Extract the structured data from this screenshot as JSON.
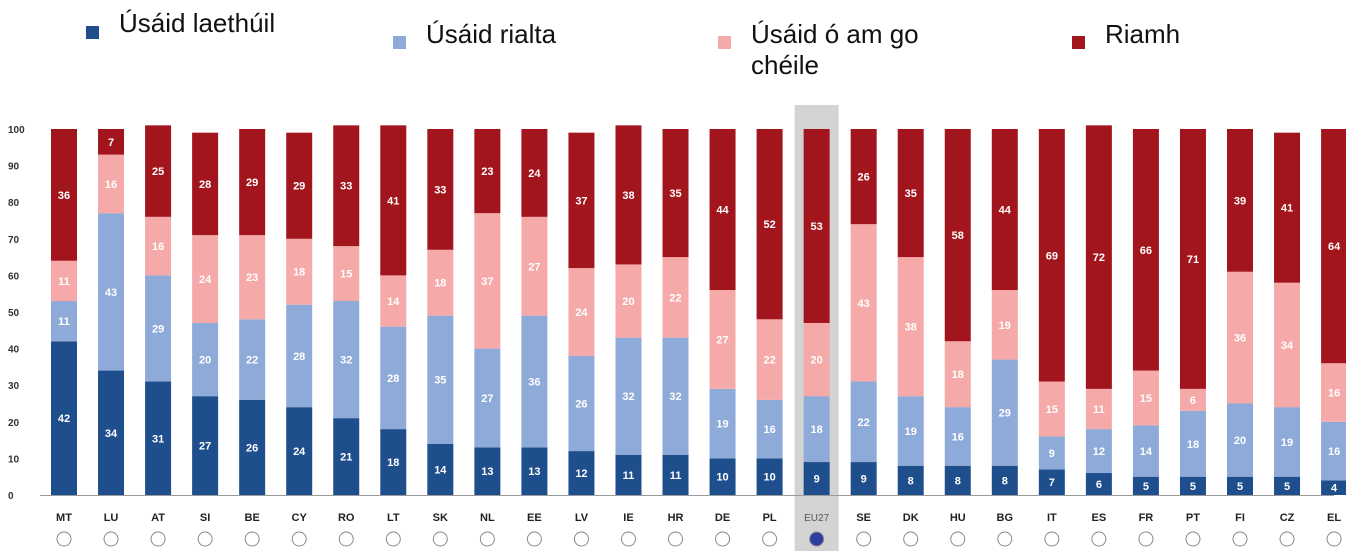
{
  "legend": [
    {
      "label": "Úsáid laethúil",
      "color": "#1f4e8c"
    },
    {
      "label": "Úsáid rialta",
      "color": "#8eaad8"
    },
    {
      "label": "Úsáid ó am go\nchéile",
      "color": "#f5a9a9"
    },
    {
      "label": "Riamh",
      "color": "#a3151c"
    }
  ],
  "chart_data": {
    "type": "bar",
    "stacked": true,
    "ylim": [
      0,
      100
    ],
    "yticks": [
      0,
      10,
      20,
      30,
      40,
      50,
      60,
      70,
      80,
      90,
      100
    ],
    "highlight_category": "EU27",
    "categories": [
      "MT",
      "LU",
      "AT",
      "SI",
      "BE",
      "CY",
      "RO",
      "LT",
      "SK",
      "NL",
      "EE",
      "LV",
      "IE",
      "HR",
      "DE",
      "PL",
      "EU27",
      "SE",
      "DK",
      "HU",
      "BG",
      "IT",
      "ES",
      "FR",
      "PT",
      "FI",
      "CZ",
      "EL"
    ],
    "series": [
      {
        "name": "Úsáid laethúil",
        "color": "#1f4e8c",
        "values": [
          42,
          34,
          31,
          27,
          26,
          24,
          21,
          18,
          14,
          13,
          13,
          12,
          11,
          11,
          10,
          10,
          9,
          9,
          8,
          8,
          8,
          7,
          6,
          5,
          5,
          5,
          5,
          4
        ]
      },
      {
        "name": "Úsáid rialta",
        "color": "#8eaad8",
        "values": [
          11,
          43,
          29,
          20,
          22,
          28,
          32,
          28,
          35,
          27,
          36,
          26,
          32,
          32,
          19,
          16,
          18,
          22,
          19,
          16,
          29,
          9,
          12,
          14,
          18,
          20,
          19,
          16
        ]
      },
      {
        "name": "Úsáid ó am go chéile",
        "color": "#f5a9a9",
        "values": [
          11,
          16,
          16,
          24,
          23,
          18,
          15,
          14,
          18,
          37,
          27,
          24,
          20,
          22,
          27,
          22,
          20,
          43,
          38,
          18,
          19,
          15,
          11,
          15,
          6,
          36,
          34,
          16
        ]
      },
      {
        "name": "Riamh",
        "color": "#a3151c",
        "values": [
          36,
          7,
          25,
          28,
          29,
          29,
          33,
          41,
          33,
          23,
          24,
          37,
          38,
          35,
          44,
          52,
          53,
          26,
          35,
          58,
          44,
          69,
          72,
          66,
          71,
          39,
          41,
          64
        ]
      }
    ]
  }
}
